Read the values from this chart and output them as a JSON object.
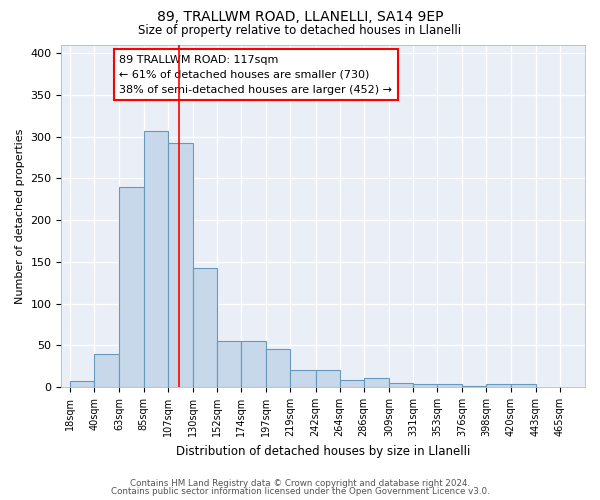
{
  "title1": "89, TRALLWM ROAD, LLANELLI, SA14 9EP",
  "title2": "Size of property relative to detached houses in Llanelli",
  "xlabel": "Distribution of detached houses by size in Llanelli",
  "ylabel": "Number of detached properties",
  "bar_values": [
    7,
    40,
    240,
    307,
    293,
    143,
    55,
    55,
    46,
    20,
    20,
    8,
    11,
    5,
    4,
    4,
    1,
    4,
    4
  ],
  "bar_left_edges": [
    18,
    40,
    63,
    85,
    107,
    130,
    152,
    174,
    197,
    219,
    242,
    264,
    286,
    309,
    331,
    353,
    376,
    420,
    443
  ],
  "tick_labels": [
    "18sqm",
    "40sqm",
    "63sqm",
    "85sqm",
    "107sqm",
    "130sqm",
    "152sqm",
    "174sqm",
    "197sqm",
    "219sqm",
    "242sqm",
    "264sqm",
    "286sqm",
    "309sqm",
    "331sqm",
    "353sqm",
    "376sqm",
    "398sqm",
    "420sqm",
    "443sqm",
    "465sqm"
  ],
  "tick_positions": [
    18,
    40,
    63,
    85,
    107,
    130,
    152,
    174,
    197,
    219,
    242,
    264,
    286,
    309,
    331,
    353,
    376,
    398,
    420,
    443,
    465
  ],
  "bar_color": "#c8d8eb",
  "bar_edge_color": "#6699bb",
  "bg_color": "#eaeff7",
  "red_line_x": 117,
  "annotation_text": "89 TRALLWM ROAD: 117sqm\n← 61% of detached houses are smaller (730)\n38% of semi-detached houses are larger (452) →",
  "annotation_box_color": "white",
  "annotation_box_edge": "red",
  "ylim": [
    0,
    410
  ],
  "xlim": [
    10,
    488
  ],
  "footer1": "Contains HM Land Registry data © Crown copyright and database right 2024.",
  "footer2": "Contains public sector information licensed under the Open Government Licence v3.0."
}
